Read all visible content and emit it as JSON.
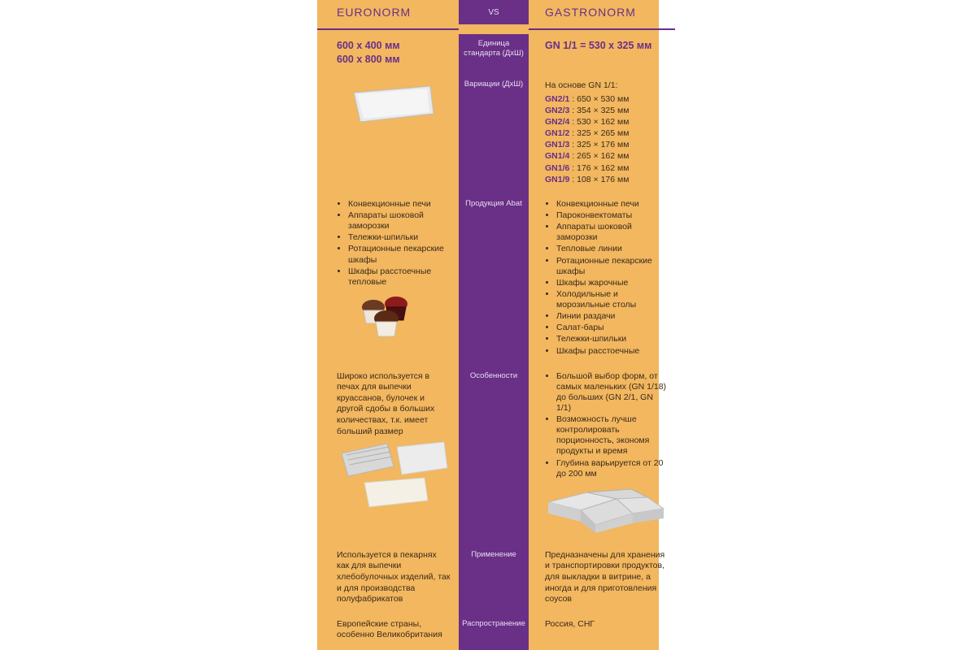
{
  "colors": {
    "bg": "#f2b75f",
    "purple": "#6a2f87",
    "purple_text_on_purple": "#e8def0",
    "body_text": "#3a2a1b"
  },
  "header": {
    "left": "EURONORM",
    "center": "VS",
    "right": "GASTRONORM"
  },
  "std_unit": {
    "label": "Единица стандарта (ДхШ)",
    "left_line1": "600 x 400 мм",
    "left_line2": "600 x 800 мм",
    "right": "GN 1/1 = 530 x 325 мм"
  },
  "variations": {
    "label": "Вариации (ДхШ)",
    "intro": "На основе GN 1/1:",
    "items": [
      {
        "code": "GN2/1",
        "dims": "650 × 530 мм"
      },
      {
        "code": "GN2/3",
        "dims": "354 × 325 мм"
      },
      {
        "code": "GN2/4",
        "dims": "530 × 162 мм"
      },
      {
        "code": "GN1/2",
        "dims": "325 × 265 мм"
      },
      {
        "code": "GN1/3",
        "dims": "325 × 176 мм"
      },
      {
        "code": "GN1/4",
        "dims": "265 × 162 мм"
      },
      {
        "code": "GN1/6",
        "dims": "176 × 162 мм"
      },
      {
        "code": "GN1/9",
        "dims": "108 × 176 мм"
      }
    ]
  },
  "abat": {
    "label": "Продукция Abat",
    "left": [
      "Конвекционные печи",
      "Аппараты шоковой заморозки",
      "Тележки-шпильки",
      "Ротационные пекарские шкафы",
      "Шкафы расстоечные тепловые"
    ],
    "right": [
      "Конвекционные печи",
      "Пароконвектоматы",
      "Аппараты шоковой заморозки",
      "Тепловые линии",
      "Ротационные пекарские шкафы",
      "Шкафы жарочные",
      "Холодильные и морозильные столы",
      "Линии раздачи",
      "Салат-бары",
      "Тележки-шпильки",
      "Шкафы расстоечные"
    ]
  },
  "features": {
    "label": "Особенности",
    "left": "Широко используется в печах для выпечки круассанов, булочек и другой сдобы в больших количествах, т.к. имеет больший размер",
    "right": [
      "Большой выбор форм, от самых маленьких (GN 1/18) до больших (GN 2/1, GN 1/1)",
      "Возможность лучше контролировать порционность, экономя продукты и время",
      "Глубина варьируется от 20 до 200 мм"
    ]
  },
  "usage": {
    "label": "Применение",
    "left": "Используется в пекарнях как для выпечки хлебобулочных изделий, так и для производства полуфабрикатов",
    "right": "Предназначены для хранения и транспортировки продуктов, для выкладки в витрине, а иногда и для приготовления соусов"
  },
  "spread": {
    "label": "Распространение",
    "left": "Европейские страны, особенно Великобритания",
    "right": "Россия, СНГ"
  }
}
